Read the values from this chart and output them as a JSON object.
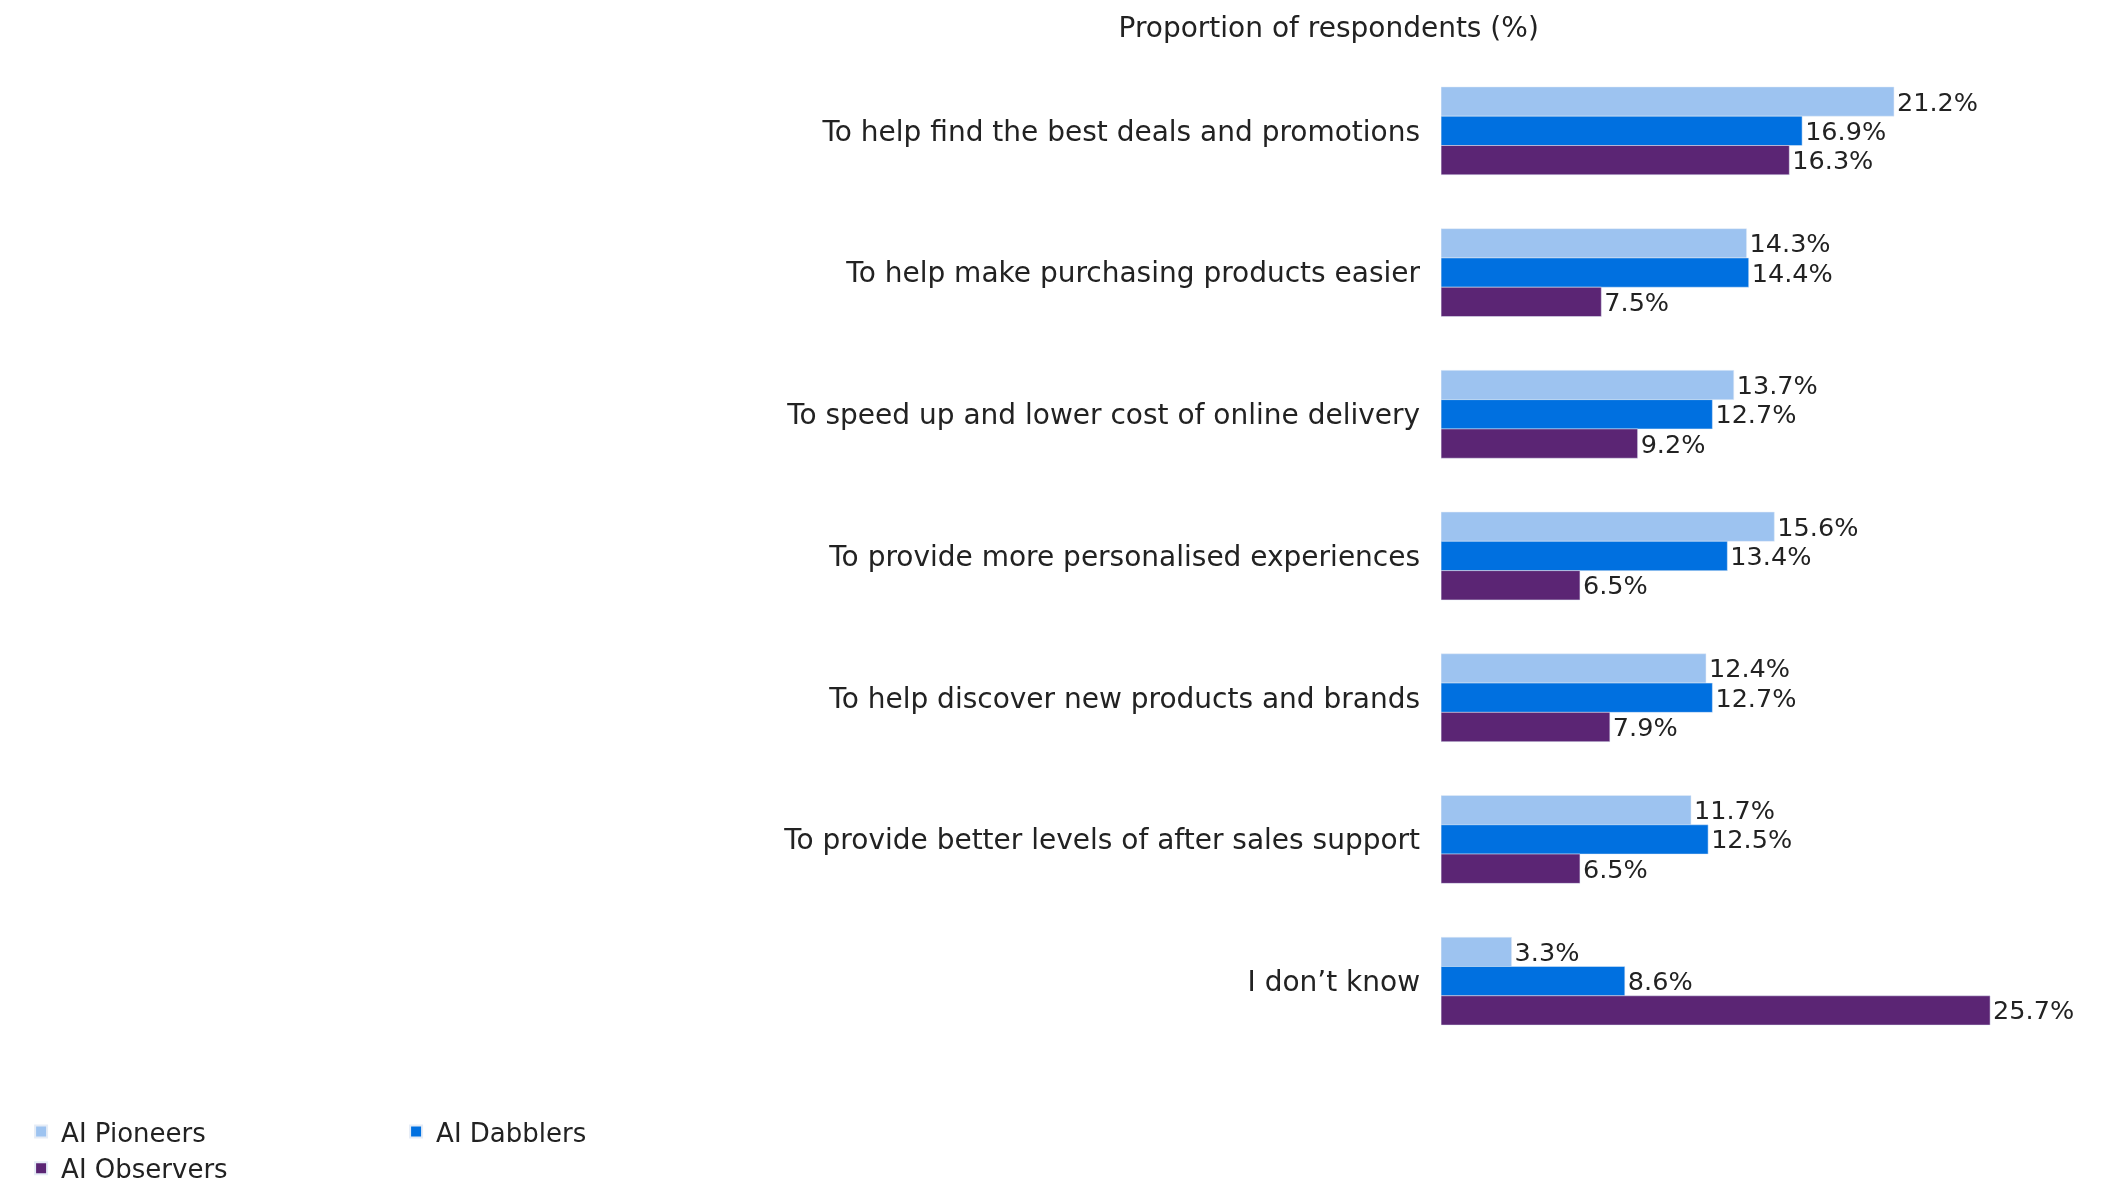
{
  "chart_data": {
    "type": "bar",
    "orientation": "horizontal",
    "title": "Proportion of respondents (%)",
    "categories": [
      "To help find the best deals and promotions",
      "To help make purchasing products easier",
      "To speed up and lower cost of online delivery",
      "To provide more personalised experiences",
      "To help discover new products and brands",
      "To provide better levels of after sales support",
      "I don’t know"
    ],
    "series": [
      {
        "name": "AI Pioneers",
        "color": "#9dc3f0",
        "values": [
          21.2,
          14.3,
          13.7,
          15.6,
          12.4,
          11.7,
          3.3
        ],
        "value_labels": [
          "21.2%",
          "14.3%",
          "13.7%",
          "15.6%",
          "12.4%",
          "11.7%",
          "3.3%"
        ]
      },
      {
        "name": "AI Dabblers",
        "color": "#0070e0",
        "values": [
          16.9,
          14.4,
          12.7,
          13.4,
          12.7,
          12.5,
          8.6
        ],
        "value_labels": [
          "16.9%",
          "14.4%",
          "12.7%",
          "13.4%",
          "12.7%",
          "12.5%",
          "8.6%"
        ]
      },
      {
        "name": "AI Observers",
        "color": "#5b2574",
        "values": [
          16.3,
          7.5,
          9.2,
          6.5,
          7.9,
          6.5,
          25.7
        ],
        "value_labels": [
          "16.3%",
          "7.5%",
          "9.2%",
          "6.5%",
          "7.9%",
          "6.5%",
          "25.7%"
        ]
      }
    ],
    "tick_labels": "y",
    "legend": "bottom left"
  }
}
